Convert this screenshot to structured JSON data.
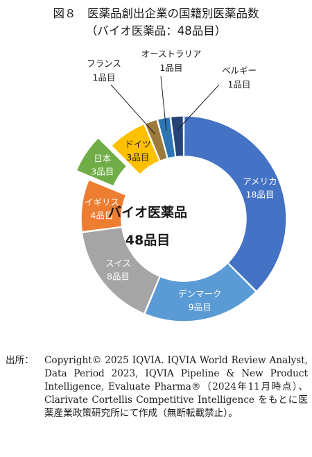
{
  "title": "図８　医薬品創出企業の国籍別医薬品数",
  "subtitle": "（バイオ医薬品：48品目）",
  "chart_data": {
    "type": "pie",
    "variant": "donut",
    "center_label": [
      "バイオ医薬品",
      "48品目"
    ],
    "total": 48,
    "slices": [
      {
        "name": "アメリカ",
        "value": 18,
        "label": "18品目",
        "color": "#4472C4"
      },
      {
        "name": "デンマーク",
        "value": 9,
        "label": "9品目",
        "color": "#5B9BD5"
      },
      {
        "name": "スイス",
        "value": 8,
        "label": "8品目",
        "color": "#A5A5A5"
      },
      {
        "name": "イギリス",
        "value": 4,
        "label": "4品目",
        "color": "#ED7D31"
      },
      {
        "name": "日本",
        "value": 3,
        "label": "3品目",
        "color": "#70AD47",
        "exploded": true
      },
      {
        "name": "ドイツ",
        "value": 3,
        "label": "3品目",
        "color": "#FFC000"
      },
      {
        "name": "フランス",
        "value": 1,
        "label": "1品目",
        "color": "#9C7A3C"
      },
      {
        "name": "オーストラリア",
        "value": 1,
        "label": "1品目",
        "color": "#2E75B6"
      },
      {
        "name": "ベルギー",
        "value": 1,
        "label": "1品目",
        "color": "#264478"
      }
    ]
  },
  "source": {
    "label": "出所：",
    "text": "Copyright© 2025 IQVIA. IQVIA World Review Analyst, Data Period 2023, IQVIA Pipeline & New Product Intelligence, Evaluate Pharma®（2024年11月時点）、Clarivate Cortellis Competitive Intelligence をもとに医薬産業政策研究所にて作成（無断転載禁止）。"
  }
}
